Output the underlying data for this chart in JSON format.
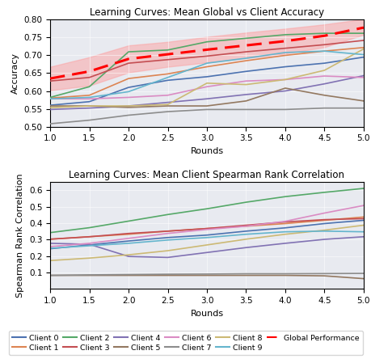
{
  "rounds": [
    1.0,
    1.5,
    2.0,
    2.5,
    3.0,
    3.5,
    4.0,
    4.5,
    5.0
  ],
  "title1": "Learning Curves: Mean Global vs Client Accuracy",
  "title2": "Learning Curves: Mean Client Spearman Rank Correlation",
  "xlabel": "Rounds",
  "ylabel1": "Accuracy",
  "ylabel2": "Spearman Rank Correlation",
  "bg_color": "#e8eaf0",
  "client_colors": {
    "Client 0": "#4c72b0",
    "Client 1": "#dd8452",
    "Client 2": "#55a868",
    "Client 3": "#c44e52",
    "Client 4": "#8172b3",
    "Client 5": "#937860",
    "Client 6": "#da8bc3",
    "Client 7": "#8c8c8c",
    "Client 8": "#ccb974",
    "Client 9": "#64b5cd"
  },
  "accuracy": {
    "Client 0": [
      0.56,
      0.57,
      0.61,
      0.63,
      0.64,
      0.655,
      0.668,
      0.678,
      0.695
    ],
    "Client 1": [
      0.58,
      0.588,
      0.635,
      0.648,
      0.668,
      0.685,
      0.7,
      0.712,
      0.722
    ],
    "Client 2": [
      0.582,
      0.612,
      0.71,
      0.715,
      0.738,
      0.748,
      0.758,
      0.762,
      0.762
    ],
    "Client 3": [
      0.628,
      0.638,
      0.678,
      0.688,
      0.698,
      0.71,
      0.72,
      0.73,
      0.742
    ],
    "Client 4": [
      0.548,
      0.552,
      0.558,
      0.568,
      0.578,
      0.59,
      0.6,
      0.62,
      0.643
    ],
    "Client 5": [
      0.558,
      0.558,
      0.554,
      0.558,
      0.558,
      0.572,
      0.608,
      0.588,
      0.572
    ],
    "Client 6": [
      0.578,
      0.578,
      0.582,
      0.588,
      0.612,
      0.628,
      0.632,
      0.642,
      0.638
    ],
    "Client 7": [
      0.508,
      0.518,
      0.532,
      0.542,
      0.548,
      0.548,
      0.548,
      0.552,
      0.552
    ],
    "Client 8": [
      0.553,
      0.558,
      0.558,
      0.562,
      0.622,
      0.618,
      0.632,
      0.658,
      0.718
    ],
    "Client 9": [
      0.578,
      0.582,
      0.598,
      0.638,
      0.678,
      0.692,
      0.708,
      0.712,
      0.702
    ]
  },
  "global_accuracy": [
    0.635,
    0.655,
    0.69,
    0.703,
    0.716,
    0.728,
    0.74,
    0.755,
    0.778
  ],
  "global_accuracy_upper": [
    0.668,
    0.695,
    0.728,
    0.738,
    0.752,
    0.764,
    0.775,
    0.787,
    0.802
  ],
  "global_accuracy_lower": [
    0.602,
    0.615,
    0.652,
    0.668,
    0.68,
    0.692,
    0.705,
    0.723,
    0.758
  ],
  "spearman": {
    "Client 0": [
      0.245,
      0.268,
      0.292,
      0.313,
      0.328,
      0.352,
      0.372,
      0.398,
      0.418
    ],
    "Client 1": [
      0.303,
      0.318,
      0.333,
      0.352,
      0.368,
      0.382,
      0.398,
      0.418,
      0.438
    ],
    "Client 2": [
      0.343,
      0.373,
      0.413,
      0.453,
      0.488,
      0.528,
      0.562,
      0.588,
      0.612
    ],
    "Client 3": [
      0.303,
      0.318,
      0.338,
      0.352,
      0.368,
      0.388,
      0.408,
      0.422,
      0.428
    ],
    "Client 4": [
      0.278,
      0.272,
      0.198,
      0.192,
      0.222,
      0.252,
      0.278,
      0.302,
      0.318
    ],
    "Client 5": [
      0.083,
      0.083,
      0.083,
      0.083,
      0.083,
      0.083,
      0.083,
      0.08,
      0.063
    ],
    "Client 6": [
      0.258,
      0.278,
      0.308,
      0.338,
      0.362,
      0.382,
      0.412,
      0.462,
      0.508
    ],
    "Client 7": [
      0.083,
      0.086,
      0.088,
      0.09,
      0.091,
      0.093,
      0.093,
      0.094,
      0.095
    ],
    "Client 8": [
      0.173,
      0.188,
      0.208,
      0.233,
      0.268,
      0.303,
      0.333,
      0.358,
      0.388
    ],
    "Client 9": [
      0.248,
      0.263,
      0.278,
      0.298,
      0.313,
      0.333,
      0.348,
      0.352,
      0.348
    ]
  },
  "fig_width": 4.6,
  "fig_height": 4.44,
  "dpi": 100
}
